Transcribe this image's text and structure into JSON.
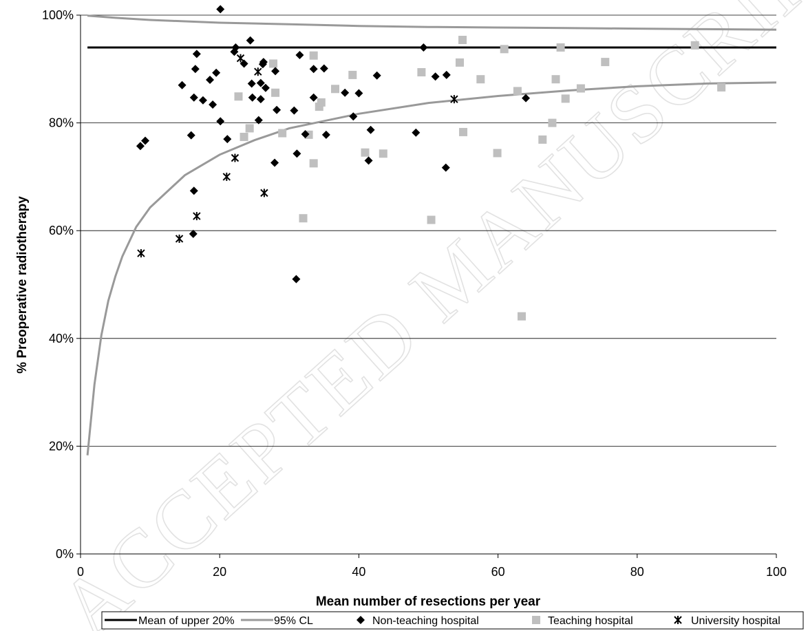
{
  "chart_data": {
    "type": "scatter",
    "title": "",
    "xlabel": "Mean number of resections per year",
    "ylabel": "% Preoperative radiotherapy",
    "xlim": [
      0,
      100
    ],
    "ylim": [
      0,
      100
    ],
    "x_ticks": [
      0,
      20,
      40,
      60,
      80,
      100
    ],
    "y_ticks": [
      0,
      20,
      40,
      60,
      80,
      100
    ],
    "x_tick_labels": [
      "0",
      "20",
      "40",
      "60",
      "80",
      "100"
    ],
    "y_tick_labels": [
      "0%",
      "20%",
      "40%",
      "60%",
      "80%",
      "100%"
    ],
    "grid": "horizontal",
    "legend_position": "bottom",
    "watermark": "ACCEPTED MANUSCRIPT",
    "colors": {
      "mean_line": "#000000",
      "cl_line": "#999999",
      "non_teaching": "#000000",
      "teaching": "#bfbfbf",
      "university": "#000000"
    },
    "series": [
      {
        "name": "Mean of upper 20%",
        "kind": "line",
        "x": [
          1,
          100
        ],
        "y": [
          94,
          94
        ]
      },
      {
        "name": "95% CL",
        "kind": "line",
        "upper": {
          "x": [
            1,
            5,
            10,
            20,
            30,
            40,
            50,
            60,
            70,
            80,
            90,
            100
          ],
          "y": [
            99.9,
            99.5,
            99.1,
            98.6,
            98.3,
            98.0,
            97.8,
            97.7,
            97.6,
            97.5,
            97.4,
            97.3
          ]
        },
        "lower": {
          "x": [
            1,
            2,
            3,
            4,
            5,
            6,
            8,
            10,
            15,
            20,
            25,
            30,
            40,
            50,
            60,
            70,
            80,
            90,
            100
          ],
          "y": [
            18.3,
            31.4,
            40.6,
            47.0,
            51.5,
            55.2,
            60.7,
            64.3,
            70.3,
            74.1,
            76.8,
            79.0,
            81.7,
            83.7,
            85.0,
            86.0,
            86.8,
            87.3,
            87.5
          ]
        }
      },
      {
        "name": "Non-teaching hospital",
        "marker": "diamond",
        "points": [
          [
            20.1,
            101.1
          ],
          [
            8.6,
            75.7
          ],
          [
            9.3,
            76.7
          ],
          [
            14.6,
            87.0
          ],
          [
            15.9,
            77.7
          ],
          [
            16.3,
            84.7
          ],
          [
            16.5,
            90.0
          ],
          [
            16.7,
            92.8
          ],
          [
            16.3,
            67.4
          ],
          [
            16.2,
            59.4
          ],
          [
            17.6,
            84.2
          ],
          [
            18.6,
            88.0
          ],
          [
            19.0,
            83.4
          ],
          [
            19.5,
            89.3
          ],
          [
            20.1,
            80.3
          ],
          [
            21.1,
            77.0
          ],
          [
            22.1,
            93.2
          ],
          [
            22.3,
            94.0
          ],
          [
            23.5,
            91.0
          ],
          [
            24.4,
            95.3
          ],
          [
            24.6,
            87.3
          ],
          [
            24.7,
            84.7
          ],
          [
            25.6,
            80.5
          ],
          [
            25.9,
            84.4
          ],
          [
            25.9,
            87.4
          ],
          [
            26.2,
            90.9
          ],
          [
            26.3,
            91.3
          ],
          [
            26.6,
            86.5
          ],
          [
            27.9,
            72.6
          ],
          [
            28.0,
            89.6
          ],
          [
            28.2,
            82.4
          ],
          [
            30.7,
            82.3
          ],
          [
            31.1,
            74.3
          ],
          [
            31.5,
            92.6
          ],
          [
            32.3,
            77.9
          ],
          [
            33.5,
            90.0
          ],
          [
            33.5,
            84.7
          ],
          [
            35.0,
            90.1
          ],
          [
            35.3,
            77.8
          ],
          [
            38.0,
            85.6
          ],
          [
            39.2,
            81.2
          ],
          [
            40.0,
            85.5
          ],
          [
            41.4,
            73.0
          ],
          [
            41.7,
            78.7
          ],
          [
            42.6,
            88.8
          ],
          [
            31.0,
            51.0
          ],
          [
            48.2,
            78.2
          ],
          [
            49.3,
            94.0
          ],
          [
            51.0,
            88.6
          ],
          [
            52.5,
            71.7
          ],
          [
            52.6,
            88.9
          ],
          [
            64.0,
            84.6
          ]
        ]
      },
      {
        "name": "Teaching hospital",
        "marker": "square",
        "points": [
          [
            22.7,
            84.9
          ],
          [
            23.5,
            77.4
          ],
          [
            24.3,
            79.0
          ],
          [
            27.7,
            91.0
          ],
          [
            28.0,
            85.6
          ],
          [
            29.0,
            78.1
          ],
          [
            32.0,
            62.3
          ],
          [
            32.8,
            77.8
          ],
          [
            33.5,
            92.5
          ],
          [
            33.5,
            72.5
          ],
          [
            34.3,
            83.0
          ],
          [
            34.6,
            83.8
          ],
          [
            36.6,
            86.3
          ],
          [
            39.1,
            88.9
          ],
          [
            40.9,
            74.5
          ],
          [
            43.5,
            74.3
          ],
          [
            49.0,
            89.4
          ],
          [
            50.4,
            62.0
          ],
          [
            54.5,
            91.2
          ],
          [
            54.9,
            95.4
          ],
          [
            55.0,
            78.3
          ],
          [
            57.5,
            88.1
          ],
          [
            59.9,
            74.4
          ],
          [
            60.9,
            93.7
          ],
          [
            62.8,
            85.9
          ],
          [
            63.4,
            44.1
          ],
          [
            66.4,
            76.9
          ],
          [
            67.8,
            80.0
          ],
          [
            68.3,
            88.1
          ],
          [
            69.0,
            94.0
          ],
          [
            69.7,
            84.5
          ],
          [
            71.9,
            86.4
          ],
          [
            75.4,
            91.3
          ],
          [
            88.3,
            94.4
          ],
          [
            92.1,
            86.6
          ]
        ]
      },
      {
        "name": "University hospital",
        "marker": "asterisk",
        "points": [
          [
            8.7,
            55.8
          ],
          [
            14.2,
            58.5
          ],
          [
            16.7,
            62.7
          ],
          [
            21.0,
            70.0
          ],
          [
            22.2,
            73.5
          ],
          [
            23.0,
            92.0
          ],
          [
            25.5,
            89.5
          ],
          [
            26.4,
            67.0
          ],
          [
            53.7,
            84.4
          ]
        ]
      }
    ]
  }
}
